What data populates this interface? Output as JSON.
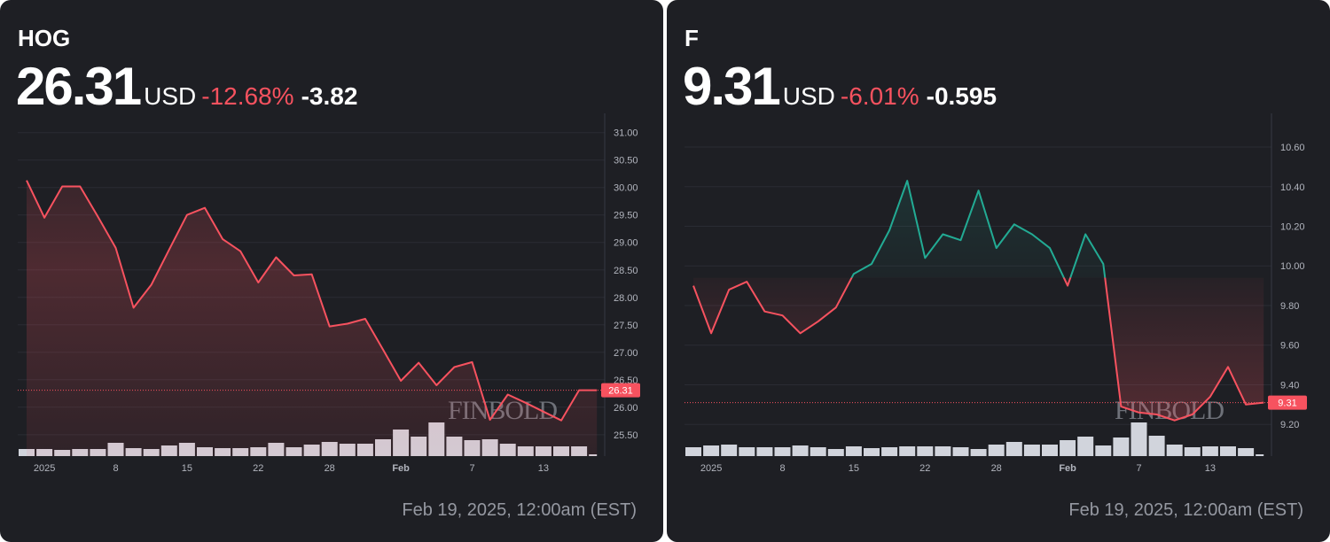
{
  "chart_data": [
    {
      "type": "line",
      "title": "HOG",
      "price": 26.31,
      "currency": "USD",
      "change_percent": "-12.68%",
      "change": -3.82,
      "timestamp": "Feb 19, 2025, 12:00am (EST)",
      "watermark": "FINBOLD",
      "color": "#f7525f",
      "grid": true,
      "categories": [
        null,
        "2025",
        null,
        null,
        null,
        "8",
        null,
        null,
        null,
        "15",
        null,
        null,
        null,
        "22",
        null,
        null,
        null,
        "28",
        null,
        null,
        null,
        "Feb",
        null,
        null,
        null,
        "7",
        null,
        null,
        null,
        "13",
        null,
        null,
        null
      ],
      "values": [
        30.13,
        29.45,
        30.02,
        30.02,
        29.47,
        28.9,
        27.81,
        28.23,
        28.87,
        29.5,
        29.63,
        29.06,
        28.84,
        28.27,
        28.73,
        28.4,
        28.42,
        27.47,
        27.52,
        27.61,
        27.05,
        26.48,
        26.81,
        26.4,
        26.73,
        26.82,
        25.77,
        26.23,
        26.08,
        25.92,
        25.76,
        26.31,
        26.31
      ],
      "volume": {
        "color": "#d1d4dc",
        "values": [
          8,
          8,
          7,
          8,
          8,
          15,
          9,
          8,
          12,
          15,
          10,
          9,
          9,
          10,
          15,
          10,
          13,
          16,
          14,
          14,
          19,
          30,
          22,
          38,
          22,
          18,
          19,
          14,
          11,
          11,
          11,
          11,
          2
        ]
      },
      "ylim": [
        25.11,
        31.35
      ],
      "yticks": [
        {
          "value": 25.5,
          "label": "25.50"
        },
        {
          "value": 26,
          "label": "26.00"
        },
        {
          "value": 26.5,
          "label": "26.50"
        },
        {
          "value": 27,
          "label": "27.00"
        },
        {
          "value": 27.5,
          "label": "27.50"
        },
        {
          "value": 28,
          "label": "28.00"
        },
        {
          "value": 28.5,
          "label": "28.50"
        },
        {
          "value": 29,
          "label": "29.00"
        },
        {
          "value": 29.5,
          "label": "29.50"
        },
        {
          "value": 30,
          "label": "30.00"
        },
        {
          "value": 30.5,
          "label": "30.50"
        },
        {
          "value": 31,
          "label": "31.00"
        }
      ]
    },
    {
      "type": "line",
      "title": "F",
      "price": 9.31,
      "currency": "USD",
      "change_percent": "-6.01%",
      "change": -0.595,
      "timestamp": "Feb 19, 2025, 12:00am (EST)",
      "watermark": "FINBOLD",
      "color": "#f7525f",
      "color_above": "#22ab94",
      "baseline": 9.94,
      "grid": true,
      "categories": [
        null,
        "2025",
        null,
        null,
        null,
        "8",
        null,
        null,
        null,
        "15",
        null,
        null,
        null,
        "22",
        null,
        null,
        null,
        "28",
        null,
        null,
        null,
        "Feb",
        null,
        null,
        null,
        "7",
        null,
        null,
        null,
        "13",
        null,
        null,
        null
      ],
      "values": [
        9.9,
        9.66,
        9.88,
        9.92,
        9.77,
        9.75,
        9.66,
        9.72,
        9.79,
        9.96,
        10.01,
        10.18,
        10.43,
        10.04,
        10.16,
        10.13,
        10.38,
        10.09,
        10.21,
        10.16,
        10.09,
        9.9,
        10.16,
        10.01,
        9.29,
        9.26,
        9.25,
        9.22,
        9.25,
        9.34,
        9.49,
        9.3,
        9.31
      ],
      "volume": {
        "color": "#d1d4dc",
        "values": [
          10,
          12,
          13,
          10,
          10,
          10,
          12,
          10,
          8,
          11,
          9,
          10,
          11,
          11,
          11,
          10,
          8,
          13,
          16,
          13,
          13,
          18,
          22,
          12,
          21,
          38,
          23,
          13,
          10,
          11,
          11,
          9,
          2
        ]
      },
      "ylim": [
        9.04,
        10.77
      ],
      "yticks": [
        {
          "value": 9.2,
          "label": "9.20"
        },
        {
          "value": 9.4,
          "label": "9.40"
        },
        {
          "value": 9.6,
          "label": "9.60"
        },
        {
          "value": 9.8,
          "label": "9.80"
        },
        {
          "value": 10,
          "label": "10.00"
        },
        {
          "value": 10.2,
          "label": "10.20"
        },
        {
          "value": 10.4,
          "label": "10.40"
        },
        {
          "value": 10.6,
          "label": "10.60"
        }
      ]
    }
  ]
}
